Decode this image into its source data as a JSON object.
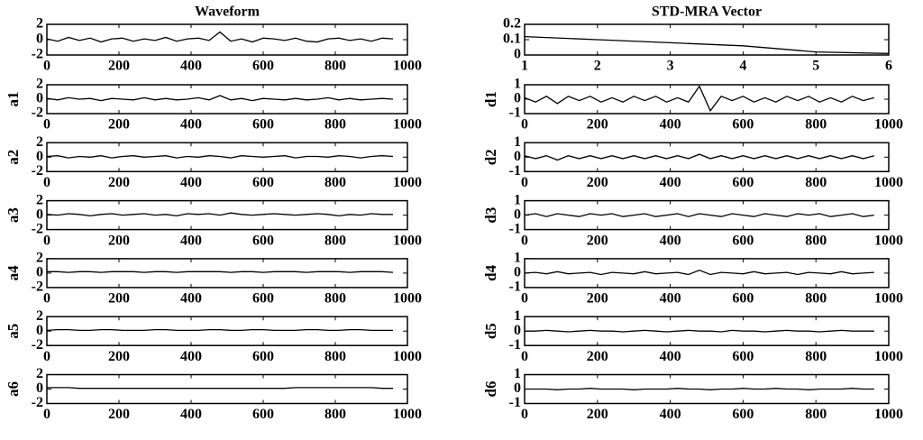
{
  "chart_data": [
    {
      "type": "line",
      "title": "Waveform",
      "x": [
        0,
        30,
        60,
        90,
        120,
        150,
        180,
        210,
        240,
        270,
        300,
        330,
        360,
        390,
        420,
        450,
        480,
        510,
        540,
        570,
        600,
        630,
        660,
        690,
        720,
        750,
        780,
        810,
        840,
        870,
        900,
        930,
        960
      ],
      "values": [
        0.1,
        -0.2,
        0.3,
        -0.1,
        0.2,
        -0.3,
        0.1,
        0.2,
        -0.2,
        0.1,
        -0.1,
        0.3,
        -0.2,
        0.1,
        0.2,
        -0.1,
        1.0,
        -0.2,
        0.1,
        -0.3,
        0.2,
        0.1,
        -0.1,
        0.2,
        -0.2,
        -0.3,
        0.1,
        0.2,
        -0.1,
        0.1,
        -0.2,
        0.2,
        0.1
      ],
      "color": "#000000",
      "xlim": [
        0,
        1000
      ],
      "xticks": [
        0,
        200,
        400,
        600,
        800,
        1000
      ],
      "ylim": [
        -2,
        2
      ],
      "yticks": [
        -2,
        0,
        2
      ]
    },
    {
      "type": "line",
      "ylabel": "a1",
      "x": [
        0,
        30,
        60,
        90,
        120,
        150,
        180,
        210,
        240,
        270,
        300,
        330,
        360,
        390,
        420,
        450,
        480,
        510,
        540,
        570,
        600,
        630,
        660,
        690,
        720,
        750,
        780,
        810,
        840,
        870,
        900,
        930,
        960
      ],
      "values": [
        0.1,
        -0.1,
        0.2,
        0,
        0.1,
        -0.2,
        0.1,
        0,
        -0.1,
        0.2,
        -0.1,
        0.1,
        -0.1,
        0,
        0.2,
        -0.1,
        0.5,
        -0.1,
        0.1,
        -0.2,
        0.1,
        0,
        -0.1,
        0.1,
        -0.1,
        0,
        0.2,
        -0.1,
        0.1,
        -0.1,
        0,
        0.1,
        0
      ],
      "color": "#000000",
      "xlim": [
        0,
        1000
      ],
      "xticks": [
        0,
        200,
        400,
        600,
        800,
        1000
      ],
      "ylim": [
        -2,
        2
      ],
      "yticks": [
        -2,
        0,
        2
      ]
    },
    {
      "type": "line",
      "ylabel": "a2",
      "x": [
        0,
        30,
        60,
        90,
        120,
        150,
        180,
        210,
        240,
        270,
        300,
        330,
        360,
        390,
        420,
        450,
        480,
        510,
        540,
        570,
        600,
        630,
        660,
        690,
        720,
        750,
        780,
        810,
        840,
        870,
        900,
        930,
        960
      ],
      "values": [
        0.1,
        0.2,
        -0.1,
        0.1,
        0,
        0.2,
        -0.1,
        0.1,
        0.2,
        0,
        0.1,
        0.2,
        -0.1,
        0.1,
        0,
        0.2,
        0.1,
        -0.1,
        0.2,
        0.1,
        0,
        0.1,
        0.2,
        -0.1,
        0.1,
        0.1,
        0,
        0.2,
        0.1,
        -0.1,
        0.1,
        0.2,
        0.1
      ],
      "color": "#000000",
      "xlim": [
        0,
        1000
      ],
      "xticks": [
        0,
        200,
        400,
        600,
        800,
        1000
      ],
      "ylim": [
        -2,
        2
      ],
      "yticks": [
        -2,
        0,
        2
      ]
    },
    {
      "type": "line",
      "ylabel": "a3",
      "x": [
        0,
        30,
        60,
        90,
        120,
        150,
        180,
        210,
        240,
        270,
        300,
        330,
        360,
        390,
        420,
        450,
        480,
        510,
        540,
        570,
        600,
        630,
        660,
        690,
        720,
        750,
        780,
        810,
        840,
        870,
        900,
        930,
        960
      ],
      "values": [
        0.1,
        0,
        0.2,
        0.1,
        -0.1,
        0.1,
        0.2,
        0,
        0.1,
        0.2,
        0,
        0.1,
        -0.1,
        0.2,
        0.1,
        0.2,
        0,
        0.3,
        0.1,
        0,
        0.1,
        0.2,
        0.1,
        0,
        0.1,
        0.2,
        0.1,
        -0.1,
        0.1,
        0,
        0.2,
        0.1,
        0.1
      ],
      "color": "#000000",
      "xlim": [
        0,
        1000
      ],
      "xticks": [
        0,
        200,
        400,
        600,
        800,
        1000
      ],
      "ylim": [
        -2,
        2
      ],
      "yticks": [
        -2,
        0,
        2
      ]
    },
    {
      "type": "line",
      "ylabel": "a4",
      "x": [
        0,
        30,
        60,
        90,
        120,
        150,
        180,
        210,
        240,
        270,
        300,
        330,
        360,
        390,
        420,
        450,
        480,
        510,
        540,
        570,
        600,
        630,
        660,
        690,
        720,
        750,
        780,
        810,
        840,
        870,
        900,
        930,
        960
      ],
      "values": [
        0.2,
        0.2,
        0.1,
        0.2,
        0.2,
        0.1,
        0.2,
        0.2,
        0.2,
        0.1,
        0.2,
        0.2,
        0.1,
        0.2,
        0.2,
        0.2,
        0.2,
        0.1,
        0.2,
        0.2,
        0.1,
        0.2,
        0.2,
        0.2,
        0.1,
        0.2,
        0.2,
        0.2,
        0.1,
        0.2,
        0.2,
        0.2,
        0.1
      ],
      "color": "#000000",
      "xlim": [
        0,
        1000
      ],
      "xticks": [
        0,
        200,
        400,
        600,
        800,
        1000
      ],
      "ylim": [
        -2,
        2
      ],
      "yticks": [
        -2,
        0,
        2
      ]
    },
    {
      "type": "line",
      "ylabel": "a5",
      "x": [
        0,
        30,
        60,
        90,
        120,
        150,
        180,
        210,
        240,
        270,
        300,
        330,
        360,
        390,
        420,
        450,
        480,
        510,
        540,
        570,
        600,
        630,
        660,
        690,
        720,
        750,
        780,
        810,
        840,
        870,
        900,
        930,
        960
      ],
      "values": [
        0.1,
        0.2,
        0.2,
        0.1,
        0.1,
        0.2,
        0.2,
        0.1,
        0.1,
        0.1,
        0.2,
        0.2,
        0.1,
        0.1,
        0.1,
        0.2,
        0.2,
        0.1,
        0.1,
        0.2,
        0.2,
        0.1,
        0.1,
        0.1,
        0.2,
        0.2,
        0.1,
        0.1,
        0.2,
        0.2,
        0.1,
        0.1,
        0.1
      ],
      "color": "#000000",
      "xlim": [
        0,
        1000
      ],
      "xticks": [
        0,
        200,
        400,
        600,
        800,
        1000
      ],
      "ylim": [
        -2,
        2
      ],
      "yticks": [
        -2,
        0,
        2
      ]
    },
    {
      "type": "line",
      "ylabel": "a6",
      "x": [
        0,
        30,
        60,
        90,
        120,
        150,
        180,
        210,
        240,
        270,
        300,
        330,
        360,
        390,
        420,
        450,
        480,
        510,
        540,
        570,
        600,
        630,
        660,
        690,
        720,
        750,
        780,
        810,
        840,
        870,
        900,
        930,
        960
      ],
      "values": [
        0.2,
        0.2,
        0.2,
        0.1,
        0.1,
        0.1,
        0.1,
        0.1,
        0.1,
        0.1,
        0.1,
        0.1,
        0.1,
        0.1,
        0.1,
        0.1,
        0.1,
        0.1,
        0.1,
        0.1,
        0.1,
        0.1,
        0.1,
        0.2,
        0.2,
        0.2,
        0.2,
        0.2,
        0.2,
        0.2,
        0.2,
        0.1,
        0.1
      ],
      "color": "#000000",
      "xlim": [
        0,
        1000
      ],
      "xticks": [
        0,
        200,
        400,
        600,
        800,
        1000
      ],
      "ylim": [
        -2,
        2
      ],
      "yticks": [
        -2,
        0,
        2
      ]
    },
    {
      "type": "line",
      "title": "STD-MRA Vector",
      "x": [
        1,
        2,
        3,
        4,
        5,
        6
      ],
      "values": [
        0.12,
        0.1,
        0.08,
        0.06,
        0.02,
        0.01
      ],
      "color": "#000000",
      "xlim": [
        1,
        6
      ],
      "xticks": [
        1,
        2,
        3,
        4,
        5,
        6
      ],
      "ylim": [
        0,
        0.2
      ],
      "yticks": [
        0,
        0.1,
        0.2
      ]
    },
    {
      "type": "line",
      "ylabel": "d1",
      "x": [
        0,
        30,
        60,
        90,
        120,
        150,
        180,
        210,
        240,
        270,
        300,
        330,
        360,
        390,
        420,
        450,
        480,
        510,
        540,
        570,
        600,
        630,
        660,
        690,
        720,
        750,
        780,
        810,
        840,
        870,
        900,
        930,
        960
      ],
      "values": [
        0.1,
        -0.2,
        0.2,
        -0.3,
        0.2,
        -0.1,
        0.2,
        -0.2,
        0.1,
        -0.2,
        0.2,
        -0.1,
        0.2,
        -0.2,
        0.1,
        -0.2,
        0.9,
        -0.8,
        0.2,
        -0.1,
        0.2,
        -0.2,
        0.1,
        -0.2,
        0.2,
        -0.1,
        0.2,
        -0.2,
        0.1,
        -0.2,
        0.2,
        -0.1,
        0.1
      ],
      "color": "#000000",
      "xlim": [
        0,
        1000
      ],
      "xticks": [
        0,
        200,
        400,
        600,
        800,
        1000
      ],
      "ylim": [
        -1,
        1
      ],
      "yticks": [
        -1,
        0,
        1
      ]
    },
    {
      "type": "line",
      "ylabel": "d2",
      "x": [
        0,
        30,
        60,
        90,
        120,
        150,
        180,
        210,
        240,
        270,
        300,
        330,
        360,
        390,
        420,
        450,
        480,
        510,
        540,
        570,
        600,
        630,
        660,
        690,
        720,
        750,
        780,
        810,
        840,
        870,
        900,
        930,
        960
      ],
      "values": [
        0.1,
        -0.1,
        0.1,
        -0.2,
        0.1,
        -0.1,
        0.1,
        -0.1,
        0.1,
        -0.1,
        0.1,
        -0.1,
        0.1,
        -0.1,
        0.1,
        -0.1,
        0.2,
        -0.1,
        0.1,
        -0.1,
        0.1,
        -0.1,
        0.1,
        -0.1,
        0.1,
        -0.1,
        0.1,
        -0.1,
        0.1,
        -0.1,
        0.1,
        -0.1,
        0.1
      ],
      "color": "#000000",
      "xlim": [
        0,
        1000
      ],
      "xticks": [
        0,
        200,
        400,
        600,
        800,
        1000
      ],
      "ylim": [
        -1,
        1
      ],
      "yticks": [
        -1,
        0,
        1
      ]
    },
    {
      "type": "line",
      "ylabel": "d3",
      "x": [
        0,
        30,
        60,
        90,
        120,
        150,
        180,
        210,
        240,
        270,
        300,
        330,
        360,
        390,
        420,
        450,
        480,
        510,
        540,
        570,
        600,
        630,
        660,
        690,
        720,
        750,
        780,
        810,
        840,
        870,
        900,
        930,
        960
      ],
      "values": [
        0,
        0.1,
        -0.1,
        0.1,
        0,
        -0.1,
        0.1,
        0,
        0.1,
        -0.1,
        0,
        0.1,
        -0.1,
        0,
        0.1,
        -0.1,
        0.1,
        0,
        -0.1,
        0.1,
        0,
        -0.1,
        0.1,
        0,
        -0.1,
        0.1,
        0,
        0.1,
        -0.1,
        0,
        0.1,
        -0.1,
        0
      ],
      "color": "#000000",
      "xlim": [
        0,
        1000
      ],
      "xticks": [
        0,
        200,
        400,
        600,
        800,
        1000
      ],
      "ylim": [
        -1,
        1
      ],
      "yticks": [
        -1,
        0,
        1
      ]
    },
    {
      "type": "line",
      "ylabel": "d4",
      "x": [
        0,
        30,
        60,
        90,
        120,
        150,
        180,
        210,
        240,
        270,
        300,
        330,
        360,
        390,
        420,
        450,
        480,
        510,
        540,
        570,
        600,
        630,
        660,
        690,
        720,
        750,
        780,
        810,
        840,
        870,
        900,
        930,
        960
      ],
      "values": [
        0,
        0.05,
        -0.05,
        0.1,
        -0.05,
        0,
        0.05,
        -0.1,
        0.05,
        0,
        -0.05,
        0.1,
        -0.05,
        0,
        0.05,
        -0.1,
        0.2,
        -0.1,
        0.05,
        0,
        -0.05,
        0.1,
        -0.05,
        0,
        0.05,
        -0.1,
        0.05,
        0,
        -0.05,
        0.1,
        -0.05,
        0,
        0.05
      ],
      "color": "#000000",
      "xlim": [
        0,
        1000
      ],
      "xticks": [
        0,
        200,
        400,
        600,
        800,
        1000
      ],
      "ylim": [
        -1,
        1
      ],
      "yticks": [
        -1,
        0,
        1
      ]
    },
    {
      "type": "line",
      "ylabel": "d5",
      "x": [
        0,
        30,
        60,
        90,
        120,
        150,
        180,
        210,
        240,
        270,
        300,
        330,
        360,
        390,
        420,
        450,
        480,
        510,
        540,
        570,
        600,
        630,
        660,
        690,
        720,
        750,
        780,
        810,
        840,
        870,
        900,
        930,
        960
      ],
      "values": [
        0,
        0,
        0.05,
        0,
        -0.05,
        0,
        0.05,
        0,
        0,
        -0.05,
        0,
        0.05,
        0,
        -0.05,
        0,
        0.05,
        0,
        0,
        -0.05,
        0.05,
        0,
        0,
        -0.05,
        0,
        0.05,
        0,
        0,
        -0.05,
        0,
        0.05,
        0,
        0,
        0
      ],
      "color": "#000000",
      "xlim": [
        0,
        1000
      ],
      "xticks": [
        0,
        200,
        400,
        600,
        800,
        1000
      ],
      "ylim": [
        -1,
        1
      ],
      "yticks": [
        -1,
        0,
        1
      ]
    },
    {
      "type": "line",
      "ylabel": "d6",
      "x": [
        0,
        30,
        60,
        90,
        120,
        150,
        180,
        210,
        240,
        270,
        300,
        330,
        360,
        390,
        420,
        450,
        480,
        510,
        540,
        570,
        600,
        630,
        660,
        690,
        720,
        750,
        780,
        810,
        840,
        870,
        900,
        930,
        960
      ],
      "values": [
        0,
        0,
        0,
        -0.05,
        0,
        0,
        0.05,
        0,
        0,
        0,
        -0.05,
        0,
        0,
        0,
        0.05,
        0,
        0,
        -0.05,
        0,
        0,
        0.05,
        0,
        0,
        0.05,
        0,
        0,
        -0.05,
        0,
        0,
        0,
        0.05,
        0,
        0
      ],
      "color": "#000000",
      "xlim": [
        0,
        1000
      ],
      "xticks": [
        0,
        200,
        400,
        600,
        800,
        1000
      ],
      "ylim": [
        -1,
        1
      ],
      "yticks": [
        -1,
        0,
        1
      ]
    }
  ]
}
